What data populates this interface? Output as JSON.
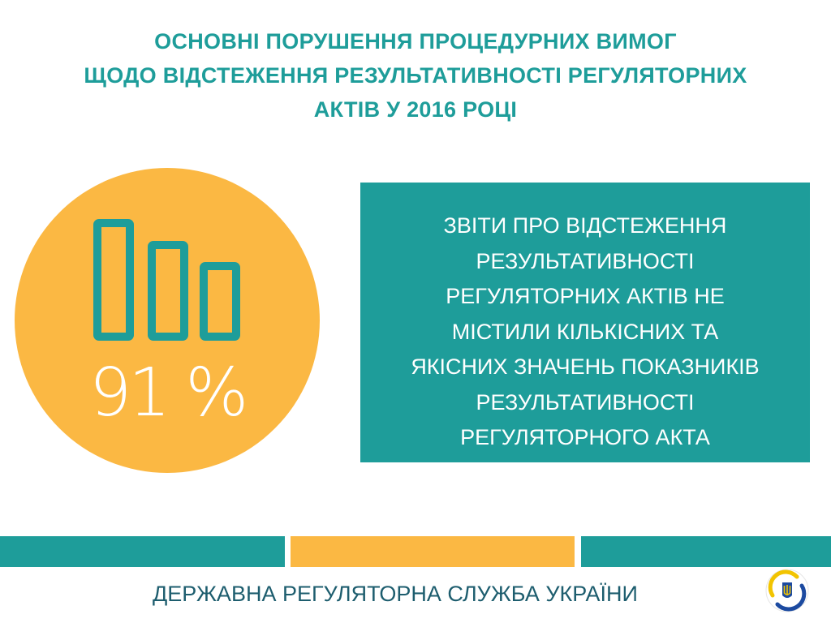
{
  "header": {
    "title_lines": [
      "ОСНОВНІ ПОРУШЕННЯ ПРОЦЕДУРНИХ ВИМОГ",
      "ЩОДО ВІДСТЕЖЕННЯ РЕЗУЛЬТАТИВНОСТІ РЕГУЛЯТОРНИХ",
      "АКТІВ У 2016 РОЦІ"
    ]
  },
  "stat": {
    "value": "91 %",
    "icon": "bar-chart-outline-icon"
  },
  "info": {
    "lines": [
      "ЗВІТИ ПРО ВІДСТЕЖЕННЯ",
      "РЕЗУЛЬТАТИВНОСТІ",
      "РЕГУЛЯТОРНИХ АКТІВ НЕ",
      "МІСТИЛИ КІЛЬКІСНИХ ТА",
      "ЯКІСНИХ ЗНАЧЕНЬ ПОКАЗНИКІВ",
      "РЕЗУЛЬТАТИВНОСТІ",
      "РЕГУЛЯТОРНОГО АКТА"
    ]
  },
  "footer": {
    "organization": "ДЕРЖАВНА РЕГУЛЯТОРНА СЛУЖБА УКРАЇНИ",
    "logo_icon": "trident-emblem-icon"
  },
  "colors": {
    "teal": "#1e9d9a",
    "yellow": "#fbb843",
    "navy": "#1d5d6e",
    "white": "#ffffff"
  }
}
